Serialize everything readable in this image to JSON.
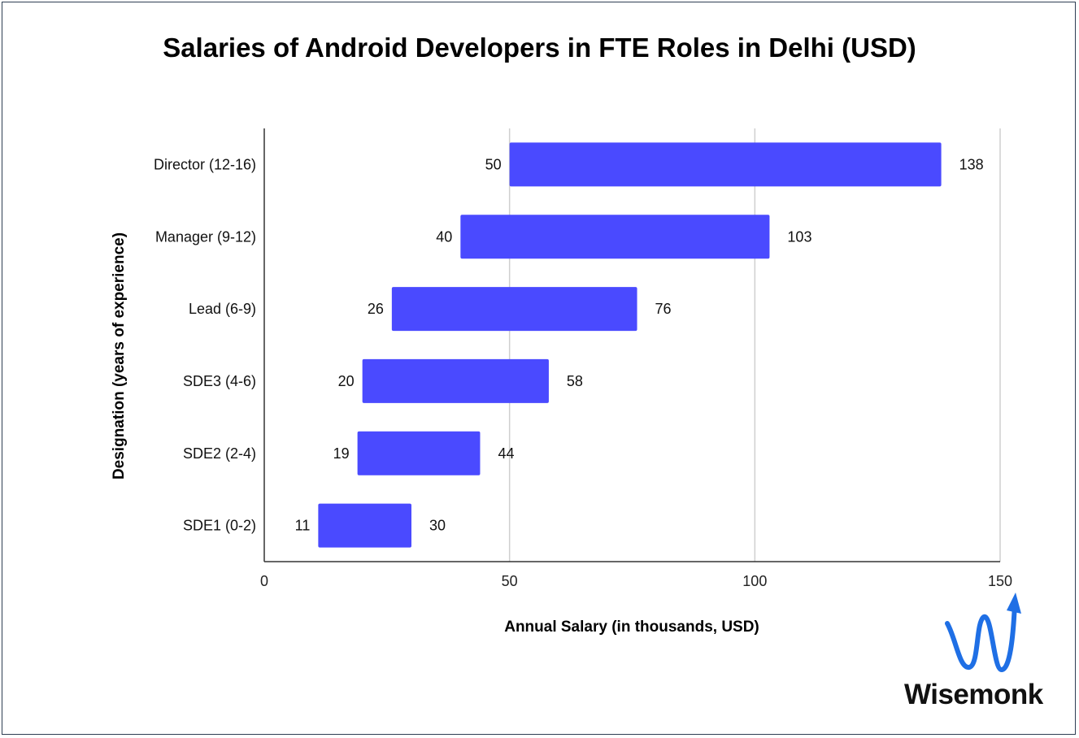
{
  "chart_data": {
    "type": "bar",
    "orientation": "horizontal-floating",
    "title": "Salaries of Android Developers in FTE Roles in Delhi (USD)",
    "xlabel": "Annual Salary (in thousands, USD)",
    "ylabel": "Designation (years of experience)",
    "xlim": [
      0,
      150
    ],
    "xticks": [
      0,
      50,
      100,
      150
    ],
    "grid": true,
    "bar_color": "#4a4aff",
    "categories": [
      "Director (12-16)",
      "Manager (9-12)",
      "Lead (6-9)",
      "SDE3 (4-6)",
      "SDE2 (2-4)",
      "SDE1 (0-2)"
    ],
    "min": [
      50,
      40,
      26,
      20,
      19,
      11
    ],
    "max": [
      138,
      103,
      76,
      58,
      44,
      30
    ]
  },
  "brand": {
    "name": "Wisemonk",
    "logo_icon": "wave-arrow-icon",
    "logo_color": "#1f6fe5"
  }
}
